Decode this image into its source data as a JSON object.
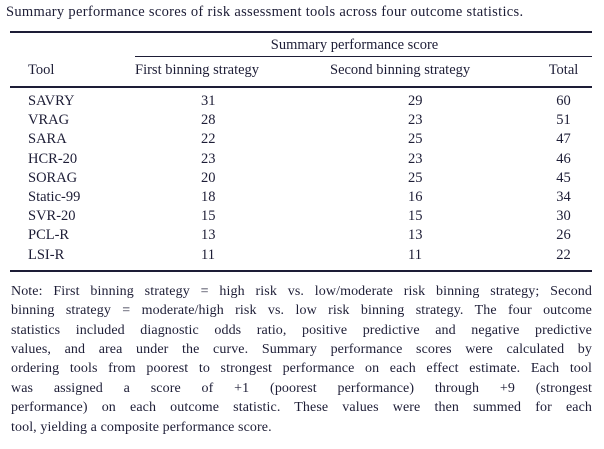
{
  "colors": {
    "ink": "#1d1d36",
    "background": "#ffffff"
  },
  "caption": "Summary performance scores of risk assessment tools across four outcome statistics.",
  "table": {
    "span_header": "Summary performance score",
    "columns": [
      "Tool",
      "First binning strategy",
      "Second binning strategy",
      "Total"
    ],
    "rows": [
      {
        "tool": "SAVRY",
        "first": "31",
        "second": "29",
        "total": "60"
      },
      {
        "tool": "VRAG",
        "first": "28",
        "second": "23",
        "total": "51"
      },
      {
        "tool": "SARA",
        "first": "22",
        "second": "25",
        "total": "47"
      },
      {
        "tool": "HCR-20",
        "first": "23",
        "second": "23",
        "total": "46"
      },
      {
        "tool": "SORAG",
        "first": "20",
        "second": "25",
        "total": "45"
      },
      {
        "tool": "Static-99",
        "first": "18",
        "second": "16",
        "total": "34"
      },
      {
        "tool": "SVR-20",
        "first": "15",
        "second": "15",
        "total": "30"
      },
      {
        "tool": "PCL-R",
        "first": "13",
        "second": "13",
        "total": "26"
      },
      {
        "tool": "LSI-R",
        "first": "11",
        "second": "11",
        "total": "22"
      }
    ]
  },
  "note": {
    "lines": [
      "Note: First binning strategy = high risk vs. low/moderate risk binning strategy; Second",
      "binning strategy = moderate/high risk vs. low risk binning strategy. The four outcome",
      "statistics included diagnostic odds ratio, positive predictive and negative predictive",
      "values, and area under the curve. Summary performance scores were calculated by",
      "ordering tools from poorest to strongest performance on each effect estimate. Each tool",
      "was assigned a score of +1 (poorest performance) through +9 (strongest",
      "performance) on each outcome statistic. These values were then summed for each",
      "tool, yielding a composite performance score."
    ]
  }
}
